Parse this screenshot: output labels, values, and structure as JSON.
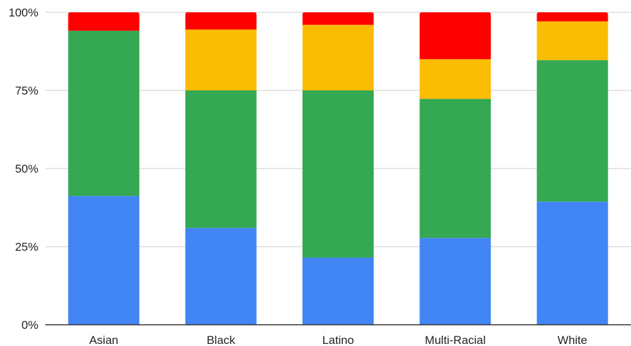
{
  "chart_data": {
    "type": "bar",
    "stacked": "percent",
    "categories": [
      "Asian",
      "Black",
      "Latino",
      "Multi-Racial",
      "White"
    ],
    "series": [
      {
        "color": "#4285f4",
        "values": [
          41.2,
          31.0,
          21.5,
          27.8,
          39.4
        ]
      },
      {
        "color": "#34a853",
        "values": [
          52.9,
          44.0,
          53.5,
          44.5,
          45.3
        ]
      },
      {
        "color": "#fbbc04",
        "values": [
          0,
          19.5,
          21.0,
          12.7,
          12.4
        ]
      },
      {
        "color": "#ff0000",
        "values": [
          5.9,
          5.5,
          4.0,
          15.0,
          2.9
        ]
      }
    ],
    "ylim": [
      0,
      100
    ],
    "yticks": [
      0,
      25,
      50,
      75,
      100
    ],
    "ytick_labels": [
      "0%",
      "25%",
      "50%",
      "75%",
      "100%"
    ],
    "grid": true,
    "title": "",
    "xlabel": "",
    "ylabel": ""
  }
}
